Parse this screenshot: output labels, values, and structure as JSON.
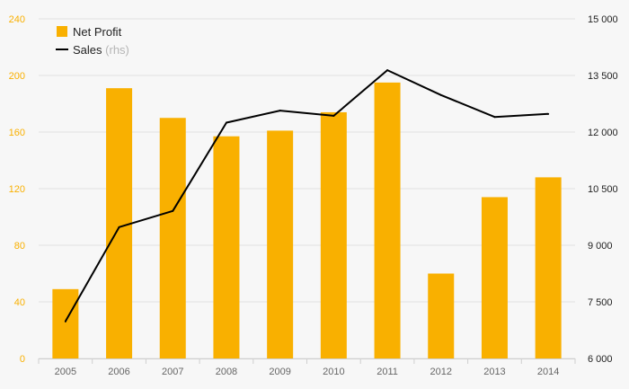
{
  "chart_data": {
    "type": "bar",
    "categories": [
      "2005",
      "2006",
      "2007",
      "2008",
      "2009",
      "2010",
      "2011",
      "2012",
      "2013",
      "2014"
    ],
    "series": [
      {
        "name": "Net Profit",
        "type": "bar",
        "axis": "left",
        "color": "#f9b000",
        "values": [
          49,
          191,
          170,
          157,
          161,
          174,
          195,
          60,
          114,
          128
        ]
      },
      {
        "name": "Sales",
        "type": "line",
        "axis": "right",
        "color": "#000000",
        "values": [
          6980,
          9480,
          9910,
          12250,
          12570,
          12430,
          13640,
          12980,
          12400,
          12480
        ]
      }
    ],
    "left_axis": {
      "ylim": [
        0,
        240
      ],
      "ticks": [
        "0",
        "40",
        "80",
        "120",
        "160",
        "200",
        "240"
      ],
      "color": "#f9b000"
    },
    "right_axis": {
      "ylim": [
        6000,
        15000
      ],
      "ticks": [
        "6 000",
        "7 500",
        "9 000",
        "10 500",
        "12 000",
        "13 500",
        "15 000"
      ]
    },
    "grid": true,
    "legend": {
      "position": "top-left",
      "items": [
        {
          "label": "Net Profit",
          "suffix": ""
        },
        {
          "label": "Sales",
          "suffix": "(rhs)"
        }
      ]
    }
  }
}
